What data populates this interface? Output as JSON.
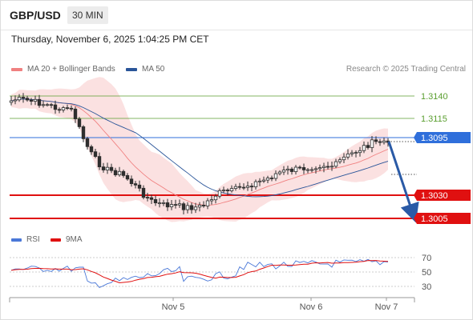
{
  "header": {
    "symbol": "GBP/USD",
    "timeframe": "30 MIN"
  },
  "datetime": "Thursday, November 6, 2025 1:04:25 PM CET",
  "legend": {
    "ma20": {
      "label": "MA 20 + Bollinger Bands",
      "color": "#f08080"
    },
    "ma50": {
      "label": "MA 50",
      "color": "#2a5599"
    }
  },
  "credit": "Research © 2025 Trading Central",
  "price_levels": [
    {
      "label": "1.3140",
      "kind": "target",
      "color": "#5a9e2f"
    },
    {
      "label": "1.3115",
      "kind": "target",
      "color": "#5a9e2f"
    },
    {
      "label": "1.3095",
      "kind": "pivot",
      "color": "#2f6fdb"
    },
    {
      "label": "1.3030",
      "kind": "support",
      "color": "#e01010"
    },
    {
      "label": "1.3005",
      "kind": "support",
      "color": "#e01010"
    }
  ],
  "rsi_legend": {
    "rsi": {
      "label": "RSI",
      "color": "#4a78d8"
    },
    "ma9": {
      "label": "9MA",
      "color": "#e01010"
    }
  },
  "rsi_levels": [
    "70",
    "50",
    "30"
  ],
  "x_axis": [
    "Nov 5",
    "Nov 6",
    "Nov 7"
  ],
  "colors": {
    "candle": "#2e2e2e",
    "band": "#fadcdc",
    "arrow": "#2a5aa6"
  }
}
